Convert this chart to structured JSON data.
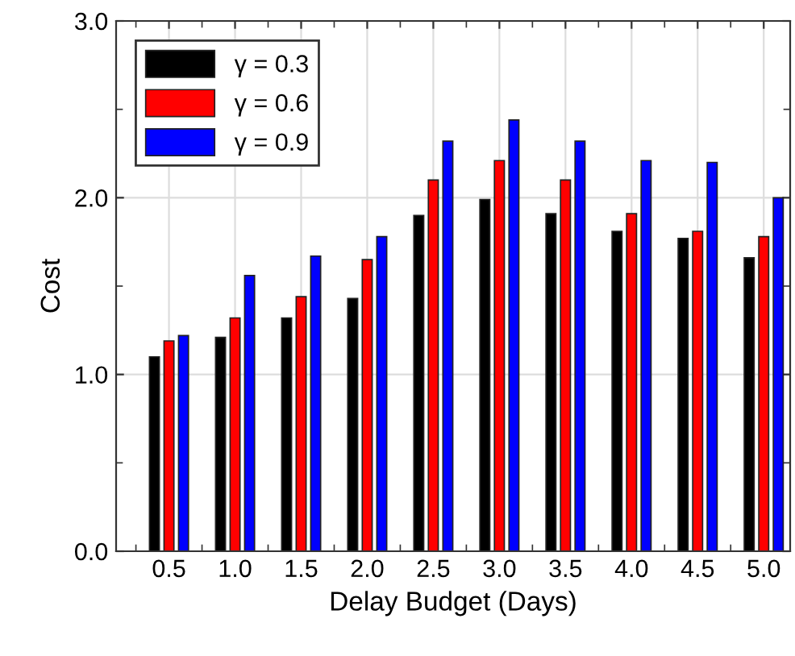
{
  "chart_data": {
    "type": "bar",
    "xlabel": "Delay Budget (Days)",
    "ylabel": "Cost",
    "categories": [
      "0.5",
      "1.0",
      "1.5",
      "2.0",
      "2.5",
      "3.0",
      "3.5",
      "4.0",
      "4.5",
      "5.0"
    ],
    "series": [
      {
        "name": "γ = 0.3",
        "color": "#000000",
        "values": [
          1.1,
          1.21,
          1.32,
          1.43,
          1.9,
          1.99,
          1.91,
          1.81,
          1.77,
          1.66
        ]
      },
      {
        "name": "γ = 0.6",
        "color": "#ff0000",
        "values": [
          1.19,
          1.32,
          1.44,
          1.65,
          2.1,
          2.21,
          2.1,
          1.91,
          1.81,
          1.78
        ]
      },
      {
        "name": "γ = 0.9",
        "color": "#0000ff",
        "values": [
          1.22,
          1.56,
          1.67,
          1.78,
          2.32,
          2.44,
          2.32,
          2.21,
          2.2,
          2.0
        ]
      }
    ],
    "ylim": [
      0,
      3.0
    ],
    "yticks": [
      {
        "value": 0,
        "label": "0.0"
      },
      {
        "value": 1,
        "label": "1.0"
      },
      {
        "value": 2,
        "label": "2.0"
      },
      {
        "value": 3,
        "label": "3.0"
      }
    ],
    "grid": true,
    "legend": "top left"
  }
}
